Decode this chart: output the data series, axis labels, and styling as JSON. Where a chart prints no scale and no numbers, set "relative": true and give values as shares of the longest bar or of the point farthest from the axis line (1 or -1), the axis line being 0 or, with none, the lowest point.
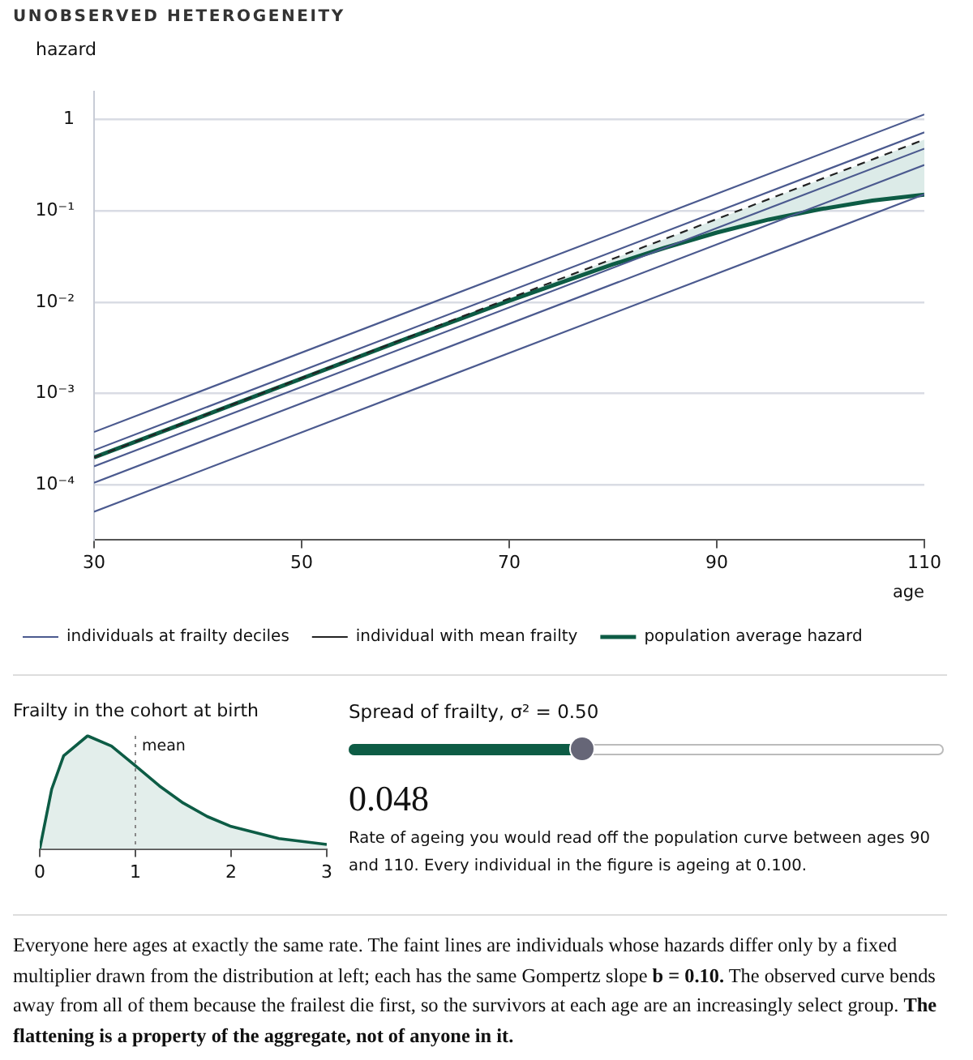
{
  "chart_data": [
    {
      "type": "line",
      "title": "UNOBSERVED HETEROGENEITY",
      "ylabel": "hazard",
      "xlabel": "age",
      "log": "y",
      "grid": "y",
      "legend": "bottom",
      "marker": "none",
      "xlim": [
        30,
        110
      ],
      "xticks": [
        30,
        50,
        70,
        90,
        110
      ],
      "ylim": [
        2.5e-05,
        2
      ],
      "yticks": [
        {
          "value": 1,
          "label": "1"
        },
        {
          "value": 0.1,
          "label": "10⁻¹"
        },
        {
          "value": 0.01,
          "label": "10⁻²"
        },
        {
          "value": 0.001,
          "label": "10⁻³"
        },
        {
          "value": 0.0001,
          "label": "10⁻⁴"
        }
      ],
      "series": [
        {
          "name": "individuals at frailty deciles",
          "color": "#4b5a8f",
          "x": [
            30,
            110
          ],
          "values": [
            0.00038,
            1.13
          ]
        },
        {
          "color": "#4b5a8f",
          "x": [
            30,
            110
          ],
          "values": [
            0.00024,
            0.72
          ]
        },
        {
          "color": "#4b5a8f",
          "x": [
            30,
            110
          ],
          "values": [
            0.00016,
            0.477
          ]
        },
        {
          "color": "#4b5a8f",
          "x": [
            30,
            110
          ],
          "values": [
            0.000106,
            0.316
          ]
        },
        {
          "color": "#4b5a8f",
          "x": [
            30,
            110
          ],
          "values": [
            5.1e-05,
            0.151
          ]
        },
        {
          "name": "individual with mean frailty",
          "color": "#222222",
          "line_style": "dashed",
          "x": [
            30,
            110
          ],
          "values": [
            0.0002,
            0.6
          ]
        },
        {
          "name": "population average hazard",
          "color": "#0d5c45",
          "x": [
            30,
            40,
            50,
            60,
            70,
            80,
            85,
            90,
            95,
            100,
            105,
            110
          ],
          "values": [
            0.0002,
            0.00054,
            0.00146,
            0.00394,
            0.01034,
            0.0259,
            0.0393,
            0.0576,
            0.08,
            0.104,
            0.129,
            0.15
          ],
          "lower": [
            0.0002,
            0.00054,
            0.00146,
            0.00394,
            0.01034,
            0.0259,
            0.0393,
            0.0576,
            0.08,
            0.104,
            0.129,
            0.15
          ],
          "upper": [
            0.0002,
            0.000544,
            0.00148,
            0.00402,
            0.0109,
            0.0297,
            0.0489,
            0.0807,
            0.133,
            0.219,
            0.362,
            0.6
          ]
        }
      ],
      "annotations": [
        "Spread of frailty, σ² = 0.50",
        "0.048",
        "Rate of ageing you would read off the population curve between ages 90 and 110. Every individual in the figure is ageing at 0.100.",
        "Everyone here ages at exactly the same rate. The faint lines are individuals whose hazards differ only by a fixed multiplier drawn from the distribution at left; each has the same Gompertz slope",
        "b = 0.10.",
        "The observed curve bends away from all of them because the frailest die first, so the survivors at each age are an increasingly select group.",
        "The flattening is a property of the aggregate, not of anyone in it."
      ]
    },
    {
      "type": "area",
      "title": "Frailty in the cohort at birth",
      "relative": true,
      "tick_labels": "x",
      "grid": false,
      "legend": false,
      "marker": "none",
      "xlim": [
        0,
        3
      ],
      "xticks": [
        0,
        1,
        2,
        3
      ],
      "x": [
        0,
        0.125,
        0.25,
        0.5,
        0.75,
        1,
        1.25,
        1.5,
        1.75,
        2,
        2.5,
        3
      ],
      "values": [
        0,
        0.529,
        0.824,
        1,
        0.91,
        0.736,
        0.558,
        0.406,
        0.287,
        0.199,
        0.0916,
        0.0404
      ],
      "color": "#0d5c45",
      "ref_lines": [
        {
          "axis": "x",
          "value": 1,
          "label": "mean",
          "line_style": "dotted",
          "color": "#888888"
        }
      ]
    }
  ]
}
